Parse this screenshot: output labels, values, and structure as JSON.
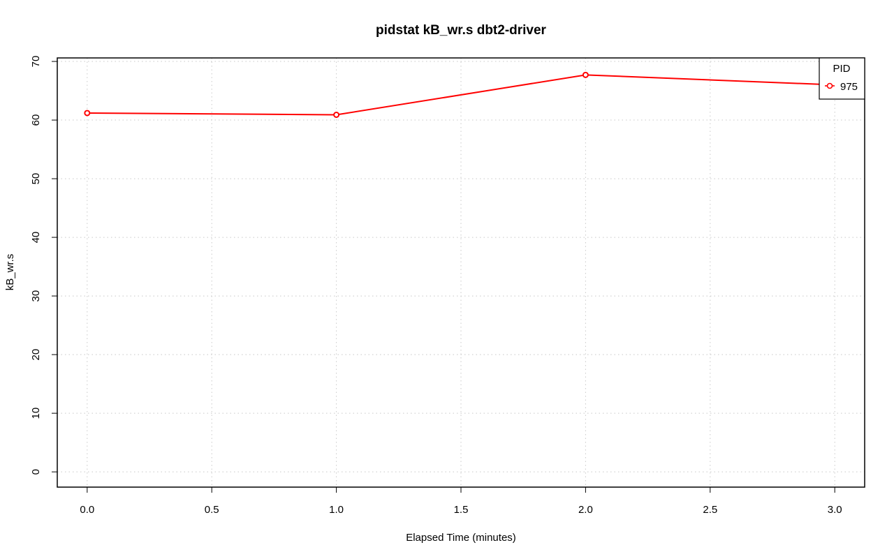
{
  "chart_data": {
    "type": "line",
    "title": "pidstat kB_wr.s dbt2-driver",
    "xlabel": "Elapsed Time (minutes)",
    "ylabel": "kB_wr.s",
    "xlim": [
      -0.12,
      3.12
    ],
    "ylim": [
      -2.6,
      70.6
    ],
    "x_ticks": [
      "0.0",
      "0.5",
      "1.0",
      "1.5",
      "2.0",
      "2.5",
      "3.0"
    ],
    "y_ticks": [
      "0",
      "10",
      "20",
      "30",
      "40",
      "50",
      "60",
      "70"
    ],
    "grid": true,
    "legend": {
      "title": "PID",
      "position": "top-right"
    },
    "series": [
      {
        "name": "975",
        "color": "#ff0000",
        "x": [
          0,
          1,
          2,
          3
        ],
        "y": [
          61.2,
          60.9,
          67.7,
          66.0
        ]
      }
    ]
  }
}
